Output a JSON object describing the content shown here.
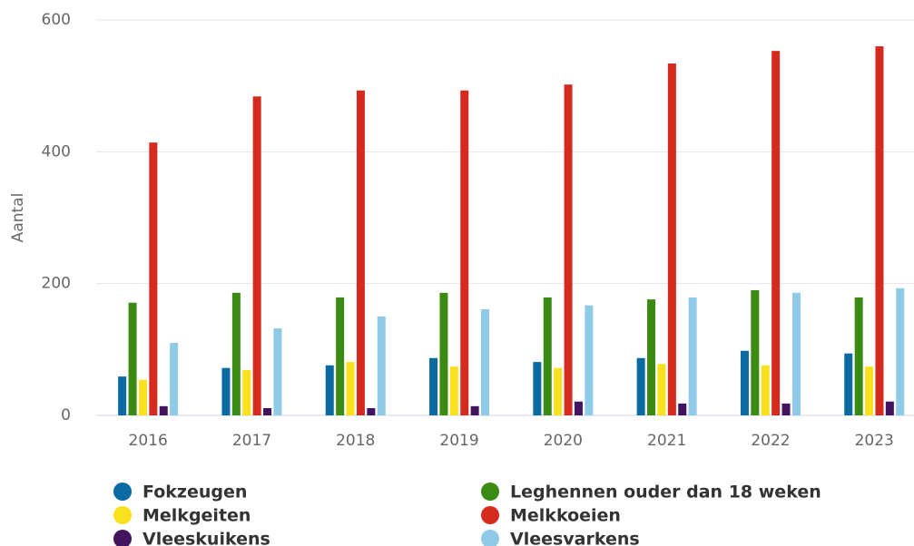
{
  "chart_data": {
    "type": "bar",
    "y_label": "Aantal",
    "categories": [
      "2016",
      "2017",
      "2018",
      "2019",
      "2020",
      "2021",
      "2022",
      "2023"
    ],
    "series": [
      {
        "name": "Fokzeugen",
        "color": "#0a6aa1",
        "values": [
          59,
          72,
          76,
          87,
          81,
          87,
          98,
          94
        ]
      },
      {
        "name": "Leghennen ouder dan 18 weken",
        "color": "#3a8a14",
        "values": [
          171,
          186,
          179,
          186,
          179,
          176,
          190,
          179
        ]
      },
      {
        "name": "Melkgeiten",
        "color": "#f9e11e",
        "values": [
          54,
          69,
          81,
          74,
          72,
          78,
          76,
          74
        ]
      },
      {
        "name": "Melkkoeien",
        "color": "#d52b1e",
        "values": [
          414,
          484,
          493,
          493,
          502,
          534,
          553,
          560
        ]
      },
      {
        "name": "Vleeskuikens",
        "color": "#42145f",
        "values": [
          14,
          11,
          11,
          14,
          21,
          18,
          18,
          21
        ]
      },
      {
        "name": "Vleesvarkens",
        "color": "#8fcae7",
        "values": [
          110,
          132,
          150,
          161,
          167,
          179,
          186,
          193
        ]
      }
    ],
    "ylim": [
      0,
      600
    ],
    "yticks": [
      0,
      200,
      400,
      600
    ],
    "grid": true
  }
}
